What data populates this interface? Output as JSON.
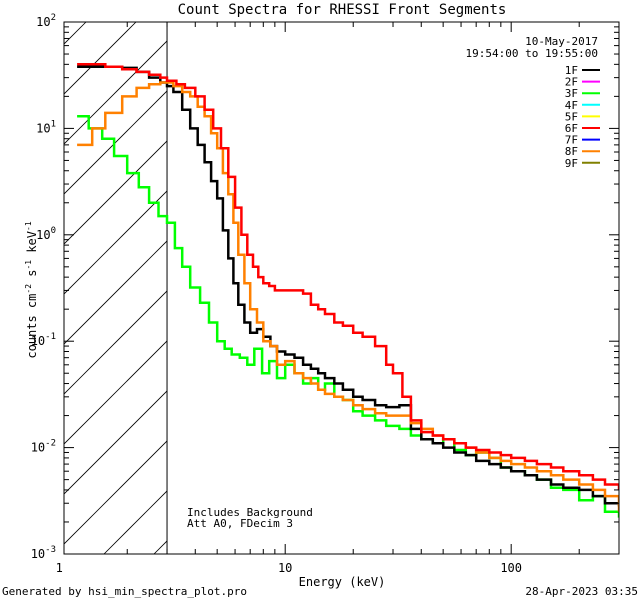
{
  "chart_data": {
    "type": "line",
    "title": "Count Spectra for RHESSI Front Segments",
    "xlabel": "Energy (keV)",
    "ylabel_parts": [
      "counts cm",
      "-2",
      " s",
      "-1",
      " keV",
      "-1"
    ],
    "xscale": "log",
    "yscale": "log",
    "xlim": [
      1.05,
      300
    ],
    "ylim": [
      0.001,
      100
    ],
    "x_ticks": [
      {
        "value": 1,
        "label": "1"
      },
      {
        "value": 10,
        "label": "10"
      },
      {
        "value": 100,
        "label": "100"
      }
    ],
    "y_ticks": [
      {
        "value": 100,
        "base": "10",
        "exp": "2"
      },
      {
        "value": 10,
        "base": "10",
        "exp": "1"
      },
      {
        "value": 1,
        "base": "10",
        "exp": "0"
      },
      {
        "value": 0.1,
        "base": "10",
        "exp": "-1"
      },
      {
        "value": 0.01,
        "base": "10",
        "exp": "-2"
      },
      {
        "value": 0.001,
        "base": "10",
        "exp": "-3"
      }
    ],
    "shaded_region_xmax": 3,
    "legend_header": [
      "10-May-2017",
      "19:54:00 to 19:55:00"
    ],
    "legend": [
      {
        "name": "1F",
        "color": "#000000"
      },
      {
        "name": "2F",
        "color": "#ff00ff"
      },
      {
        "name": "3F",
        "color": "#00ff00"
      },
      {
        "name": "4F",
        "color": "#00ffff"
      },
      {
        "name": "5F",
        "color": "#ffff00"
      },
      {
        "name": "6F",
        "color": "#ff0000"
      },
      {
        "name": "7F",
        "color": "#0000ff"
      },
      {
        "name": "8F",
        "color": "#ff8000"
      },
      {
        "name": "9F",
        "color": "#808000"
      }
    ],
    "annotations": [
      "Includes Background",
      "Att A0, FDecim 3"
    ],
    "series": [
      {
        "name": "3F",
        "color": "#00ff00",
        "x": [
          1.2,
          1.35,
          1.55,
          1.75,
          2.0,
          2.25,
          2.5,
          2.75,
          3.0,
          3.25,
          3.5,
          3.8,
          4.2,
          4.6,
          5.0,
          5.4,
          5.8,
          6.3,
          6.8,
          7.3,
          7.9,
          8.5,
          9.2,
          10,
          11,
          12,
          13,
          14,
          15,
          16.5,
          18,
          20,
          22,
          25,
          28,
          32,
          36,
          40,
          45,
          50,
          56,
          63,
          70,
          80,
          90,
          100,
          115,
          130,
          150,
          170,
          200,
          230,
          260,
          300
        ],
        "y": [
          13,
          10,
          8,
          5.5,
          3.8,
          2.8,
          2.0,
          1.5,
          1.3,
          0.75,
          0.5,
          0.32,
          0.23,
          0.15,
          0.1,
          0.085,
          0.075,
          0.07,
          0.06,
          0.085,
          0.05,
          0.065,
          0.045,
          0.06,
          0.05,
          0.04,
          0.045,
          0.035,
          0.04,
          0.03,
          0.028,
          0.022,
          0.02,
          0.018,
          0.016,
          0.015,
          0.013,
          0.012,
          0.011,
          0.012,
          0.0095,
          0.0085,
          0.009,
          0.008,
          0.0065,
          0.006,
          0.0055,
          0.005,
          0.0042,
          0.004,
          0.0032,
          0.0035,
          0.0025,
          0.0022
        ]
      },
      {
        "name": "1F",
        "color": "#000000",
        "x": [
          1.2,
          1.4,
          1.6,
          1.9,
          2.2,
          2.5,
          2.8,
          3.0,
          3.2,
          3.5,
          3.8,
          4.1,
          4.4,
          4.7,
          5.0,
          5.3,
          5.6,
          5.9,
          6.2,
          6.6,
          7.0,
          7.5,
          8.0,
          8.6,
          9.2,
          10,
          11,
          12,
          13,
          14,
          15,
          16.5,
          18,
          20,
          22,
          25,
          28,
          32,
          36,
          40,
          45,
          50,
          56,
          63,
          70,
          80,
          90,
          100,
          115,
          130,
          150,
          170,
          200,
          230,
          260,
          300
        ],
        "y": [
          38,
          38,
          38,
          37,
          34,
          30,
          27,
          25,
          22,
          15,
          10,
          7,
          4.8,
          3.2,
          2.2,
          1.1,
          0.6,
          0.35,
          0.22,
          0.15,
          0.12,
          0.13,
          0.11,
          0.09,
          0.08,
          0.075,
          0.07,
          0.06,
          0.055,
          0.05,
          0.045,
          0.04,
          0.035,
          0.03,
          0.028,
          0.025,
          0.024,
          0.025,
          0.015,
          0.012,
          0.011,
          0.01,
          0.009,
          0.0085,
          0.0075,
          0.007,
          0.0065,
          0.006,
          0.0055,
          0.005,
          0.0045,
          0.0042,
          0.004,
          0.0035,
          0.003,
          0.0028
        ]
      },
      {
        "name": "8F",
        "color": "#ff8000",
        "x": [
          1.2,
          1.4,
          1.6,
          1.9,
          2.2,
          2.5,
          2.8,
          3.0,
          3.2,
          3.5,
          3.8,
          4.1,
          4.4,
          4.7,
          5.0,
          5.3,
          5.6,
          5.9,
          6.2,
          6.6,
          7.0,
          7.5,
          8.0,
          8.6,
          9.2,
          10,
          11,
          12,
          13,
          14,
          15,
          16.5,
          18,
          20,
          22,
          25,
          28,
          32,
          36,
          40,
          45,
          50,
          56,
          63,
          70,
          80,
          90,
          100,
          115,
          130,
          150,
          170,
          200,
          230,
          260,
          300
        ],
        "y": [
          7,
          10,
          14,
          20,
          24,
          26,
          27,
          27,
          25,
          22,
          20,
          16,
          13,
          9,
          6.5,
          3.8,
          2.4,
          1.3,
          0.65,
          0.35,
          0.2,
          0.15,
          0.1,
          0.09,
          0.06,
          0.065,
          0.05,
          0.045,
          0.04,
          0.035,
          0.032,
          0.03,
          0.028,
          0.025,
          0.023,
          0.021,
          0.02,
          0.02,
          0.017,
          0.015,
          0.013,
          0.012,
          0.011,
          0.01,
          0.009,
          0.008,
          0.0075,
          0.007,
          0.0065,
          0.006,
          0.0055,
          0.005,
          0.0045,
          0.004,
          0.0035,
          0.0025
        ]
      },
      {
        "name": "6F",
        "color": "#ff0000",
        "x": [
          1.2,
          1.4,
          1.6,
          1.9,
          2.2,
          2.5,
          2.8,
          3.0,
          3.3,
          3.6,
          4.0,
          4.4,
          4.8,
          5.2,
          5.6,
          6.0,
          6.4,
          6.8,
          7.2,
          7.6,
          8.0,
          8.5,
          9.0,
          9.5,
          10,
          11,
          12,
          13,
          14,
          15,
          16.5,
          18,
          20,
          22,
          25,
          28,
          30,
          33,
          36,
          40,
          45,
          50,
          56,
          63,
          70,
          80,
          90,
          100,
          115,
          130,
          150,
          170,
          200,
          230,
          260,
          300
        ],
        "y": [
          40,
          40,
          38,
          36,
          34,
          32,
          30,
          28,
          26,
          24,
          20,
          15,
          10,
          6.5,
          3.5,
          1.8,
          1.0,
          0.65,
          0.5,
          0.4,
          0.35,
          0.33,
          0.3,
          0.3,
          0.3,
          0.3,
          0.28,
          0.22,
          0.2,
          0.18,
          0.15,
          0.14,
          0.12,
          0.11,
          0.09,
          0.06,
          0.05,
          0.03,
          0.018,
          0.014,
          0.013,
          0.012,
          0.011,
          0.01,
          0.0095,
          0.009,
          0.0085,
          0.008,
          0.0075,
          0.007,
          0.0065,
          0.006,
          0.0055,
          0.005,
          0.0045,
          0.004
        ]
      }
    ]
  },
  "footer": {
    "left": "Generated by hsi_min_spectra_plot.pro",
    "right": "28-Apr-2023 03:35"
  }
}
